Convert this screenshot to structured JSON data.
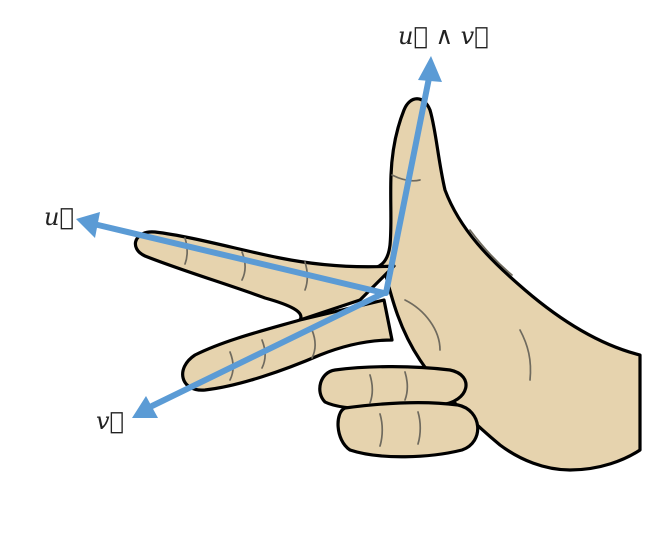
{
  "labels": {
    "u": "⃗u",
    "v": "⃗v",
    "u_wedge_v": "⃗u ∧ ⃗v"
  },
  "labels_display": {
    "u": "u⃗",
    "v": "v⃗",
    "u_wedge_v": "u⃗ ∧ v⃗"
  },
  "colors": {
    "vector": "#5b9bd5",
    "skin": "#e6d3ae",
    "outline": "#000000",
    "crease": "#6f6a5e"
  }
}
